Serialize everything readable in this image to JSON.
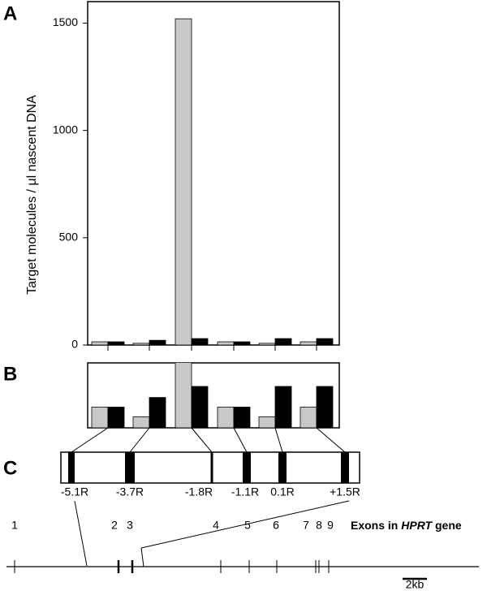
{
  "chart_data": {
    "type": "bar",
    "panel_labels": [
      "A",
      "B",
      "C"
    ],
    "ylabel": "Target molecules / μl nascent DNA",
    "ylim": [
      0,
      1600
    ],
    "yticks": [
      0,
      500,
      1000,
      1500
    ],
    "categories": [
      "-5.1R",
      "-3.7R",
      "-1.8R",
      "-1.1R",
      "0.1R",
      "+1.5R"
    ],
    "series": [
      {
        "color": "#c8c8c8",
        "values": [
          15,
          8,
          1520,
          15,
          8,
          15
        ]
      },
      {
        "color": "#000000",
        "values": [
          15,
          22,
          30,
          15,
          30,
          30
        ]
      }
    ]
  },
  "gene_map": {
    "exons": [
      "1",
      "2",
      "3",
      "4",
      "5",
      "6",
      "7",
      "8",
      "9"
    ],
    "caption_pre": "Exons in",
    "caption_gene": "HPRT",
    "caption_post": "gene",
    "scale_label": "2kb"
  }
}
